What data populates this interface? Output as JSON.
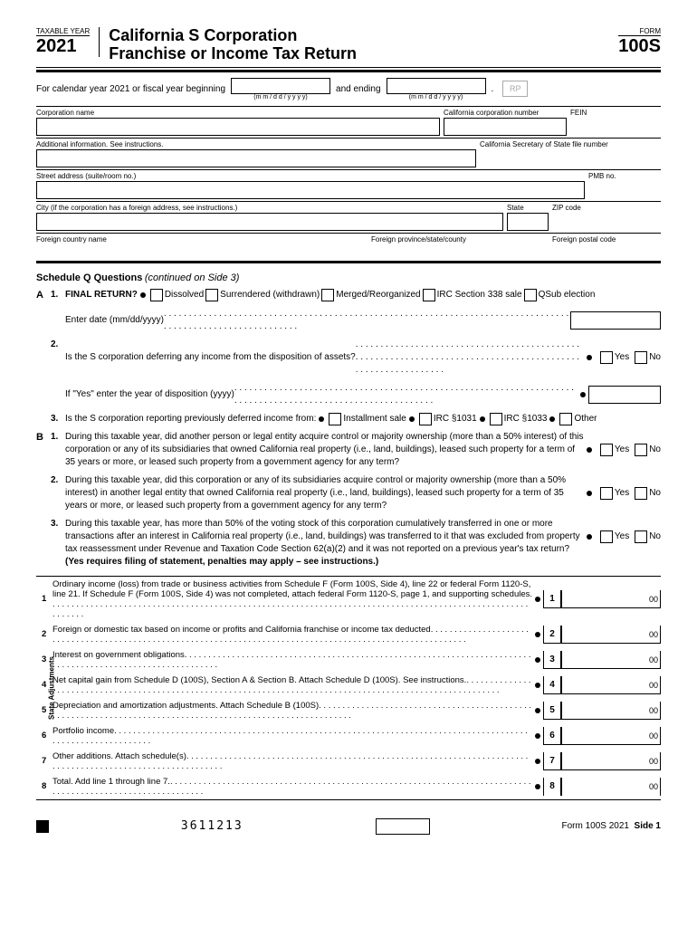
{
  "header": {
    "taxable_year_label": "TAXABLE YEAR",
    "year": "2021",
    "title_line1": "California S Corporation",
    "title_line2": "Franchise or Income Tax Return",
    "form_label": "FORM",
    "form_number": "100S"
  },
  "date_section": {
    "prefix": "For calendar year 2021 or fiscal year beginning",
    "and_ending": "and ending",
    "hint": "(m m / d  d / y  y  y  y)",
    "rp": "RP"
  },
  "fields": {
    "corp_name": "Corporation name",
    "ca_corp_num": "California corporation number",
    "fein": "FEIN",
    "additional_info": "Additional information. See instructions.",
    "sos_file_num": "California Secretary of State file number",
    "street": "Street address (suite/room no.)",
    "pmb": "PMB no.",
    "city": "City (if the corporation has a foreign address, see instructions.)",
    "state": "State",
    "zip": "ZIP code",
    "foreign_country": "Foreign country name",
    "foreign_province": "Foreign province/state/county",
    "foreign_postal": "Foreign postal code"
  },
  "schedule_q": {
    "title": "Schedule Q Questions",
    "subtitle": "(continued on Side 3)",
    "A1": {
      "label": "FINAL RETURN?",
      "opts": [
        "Dissolved",
        "Surrendered (withdrawn)",
        "Merged/Reorganized",
        "IRC Section 338 sale",
        "QSub election"
      ],
      "enter_date": "Enter date (mm/dd/yyyy)"
    },
    "A2": {
      "text": "Is the S corporation deferring any income from the disposition of assets?",
      "if_yes": "If \"Yes\" enter the year of disposition (yyyy)"
    },
    "A3": {
      "text": "Is the S corporation reporting previously deferred income from:",
      "opts": [
        "Installment sale",
        "IRC §1031",
        "IRC §1033",
        "Other"
      ]
    },
    "B1": "During this taxable year, did another person or legal entity acquire control or majority ownership (more than a 50% interest) of this corporation or any of its subsidiaries that owned California real property (i.e., land, buildings), leased such property for a term of 35 years or more, or leased such property from a government agency for any term?",
    "B2": "During this taxable year, did this corporation or any of its subsidiaries acquire control or majority ownership (more than a 50% interest) in another legal entity that owned California real property (i.e., land, buildings), leased such property for a term of 35 years or more, or leased such property from a government agency for any term?",
    "B3": "During this taxable year, has more than 50% of the voting stock of this corporation cumulatively transferred in one or more transactions after an interest in California real property (i.e., land, buildings) was transferred to it that was excluded from property tax reassessment under Revenue and Taxation Code Section 62(a)(2) and it was not reported on a previous year's tax return?",
    "B3_note": "(Yes requires filing of statement, penalties may apply – see instructions.)",
    "yes": "Yes",
    "no": "No"
  },
  "adjustments": {
    "label": "State Adjustments",
    "rows": [
      {
        "n": "1",
        "text": "Ordinary income (loss) from trade or business activities from Schedule F (Form 100S, Side 4), line 22 or federal Form 1120-S, line 21. If Schedule F (Form 100S, Side 4) was not completed, attach federal Form 1120-S, page 1, and supporting schedules",
        "box": "1",
        "suffix": "00"
      },
      {
        "n": "2",
        "text": "Foreign or domestic tax based on income or profits and California franchise or income tax deducted",
        "box": "2",
        "suffix": "00"
      },
      {
        "n": "3",
        "text": "Interest on government obligations",
        "box": "3",
        "suffix": "00"
      },
      {
        "n": "4",
        "text": "Net capital gain from Schedule D (100S), Section A & Section B. Attach Schedule D (100S). See instructions.",
        "box": "4",
        "suffix": "00"
      },
      {
        "n": "5",
        "text": "Depreciation and amortization adjustments. Attach Schedule B (100S)",
        "box": "5",
        "suffix": "00"
      },
      {
        "n": "6",
        "text": "Portfolio income",
        "box": "6",
        "suffix": "00"
      },
      {
        "n": "7",
        "text": "Other additions. Attach schedule(s)",
        "box": "7",
        "suffix": "00"
      },
      {
        "n": "8",
        "text": "Total. Add line 1 through line 7.",
        "box": "8",
        "suffix": "00"
      }
    ]
  },
  "footer": {
    "barcode": "3611213",
    "form_ref": "Form 100S 2021",
    "side": "Side 1"
  }
}
